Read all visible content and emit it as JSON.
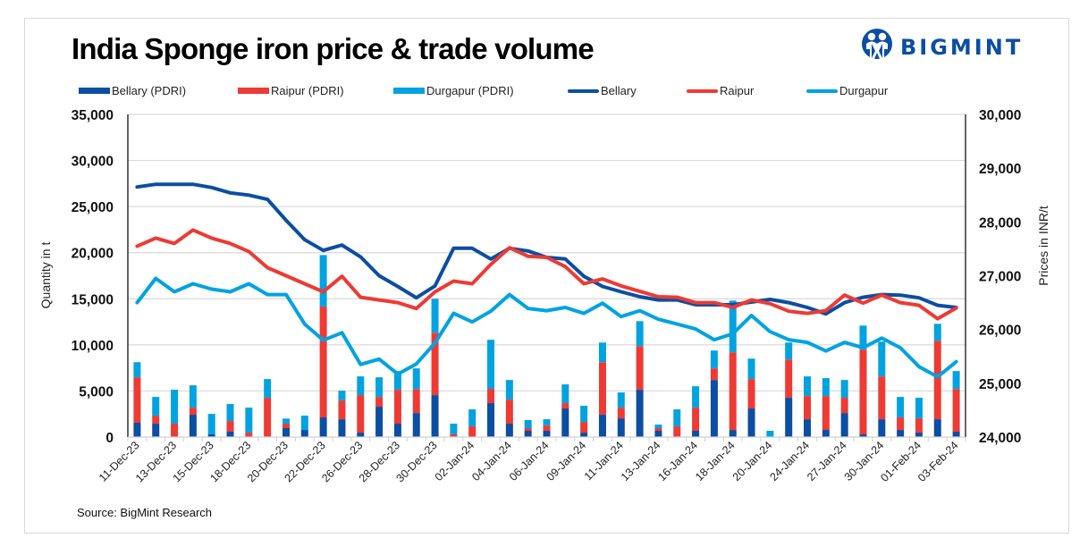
{
  "title": "India Sponge iron price & trade volume",
  "logo": {
    "text": "BIGMINT",
    "icon": "bigmint-people-icon"
  },
  "source": "Source: BigMint Research",
  "colors": {
    "bellary": "#0b4ea2",
    "raipur": "#ee3a35",
    "durgapur": "#00a3e0",
    "grid": "#d9d9d9"
  },
  "legend": [
    {
      "label": "Bellary (PDRI)",
      "kind": "bar",
      "series": "bellary"
    },
    {
      "label": "Raipur (PDRI)",
      "kind": "bar",
      "series": "raipur"
    },
    {
      "label": "Durgapur (PDRI)",
      "kind": "bar",
      "series": "durgapur"
    },
    {
      "label": "Bellary",
      "kind": "line",
      "series": "bellary"
    },
    {
      "label": "Raipur",
      "kind": "line",
      "series": "raipur"
    },
    {
      "label": "Durgapur",
      "kind": "line",
      "series": "durgapur"
    }
  ],
  "chart_data": {
    "type": "bar+line",
    "title": "India Sponge iron price & trade volume",
    "ylabel": "Quantity in t",
    "y2label": "Prices in INR/t",
    "ylim": [
      0,
      35000
    ],
    "y2lim": [
      24000,
      30000
    ],
    "yticks": [
      "0",
      "5,000",
      "10,000",
      "15,000",
      "20,000",
      "25,000",
      "30,000",
      "35,000"
    ],
    "y2ticks": [
      "24,000",
      "25,000",
      "26,000",
      "27,000",
      "28,000",
      "29,000",
      "30,000"
    ],
    "grid": true,
    "legend_position": "top",
    "categories": [
      "11-Dec-23",
      "",
      "13-Dec-23",
      "",
      "15-Dec-23",
      "",
      "18-Dec-23",
      "",
      "20-Dec-23",
      "",
      "22-Dec-23",
      "",
      "26-Dec-23",
      "",
      "28-Dec-23",
      "",
      "30-Dec-23",
      "",
      "02-Jan-24",
      "",
      "04-Jan-24",
      "",
      "06-Jan-24",
      "",
      "09-Jan-24",
      "",
      "11-Jan-24",
      "",
      "13-Jan-24",
      "",
      "16-Jan-24",
      "",
      "18-Jan-24",
      "",
      "20-Jan-24",
      "",
      "24-Jan-24",
      "",
      "27-Jan-24",
      "",
      "30-Jan-24",
      "",
      "01-Feb-24",
      "",
      "03-Feb-24"
    ],
    "bar_series": [
      {
        "name": "Bellary (PDRI)",
        "key": "bellary",
        "stacked": true,
        "values": [
          1550,
          1450,
          0,
          2420,
          290,
          580,
          0,
          0,
          970,
          770,
          2130,
          1930,
          480,
          3290,
          1450,
          2610,
          4550,
          0,
          0,
          3680,
          1450,
          680,
          680,
          3100,
          480,
          2420,
          2030,
          5130,
          680,
          0,
          680,
          6190,
          770,
          3100,
          0,
          4260,
          1930,
          770,
          2610,
          290,
          1930,
          770,
          480,
          1930,
          580
        ]
      },
      {
        "name": "Raipur (PDRI)",
        "key": "raipur",
        "stacked": true,
        "values": [
          4930,
          870,
          1450,
          770,
          0,
          1160,
          480,
          4260,
          480,
          0,
          12020,
          2040,
          4070,
          1060,
          3680,
          2610,
          6770,
          290,
          1160,
          1550,
          2610,
          290,
          570,
          580,
          1160,
          5700,
          1160,
          4730,
          290,
          1160,
          2510,
          1260,
          8420,
          3190,
          0,
          4150,
          2520,
          3680,
          1650,
          9190,
          4650,
          1360,
          1550,
          8520,
          4640
        ]
      },
      {
        "name": "Durgapur (PDRI)",
        "key": "durgapur",
        "stacked": true,
        "values": [
          1640,
          2030,
          3680,
          2420,
          2220,
          1840,
          2710,
          2030,
          550,
          1550,
          5590,
          1060,
          2030,
          2130,
          2030,
          2230,
          3680,
          1160,
          1840,
          5320,
          2130,
          870,
          680,
          2030,
          1750,
          2130,
          1650,
          2710,
          380,
          1840,
          2320,
          1930,
          5610,
          2220,
          680,
          1840,
          2130,
          1940,
          1930,
          2610,
          3770,
          2220,
          2230,
          1830,
          1940
        ]
      }
    ],
    "line_series": [
      {
        "name": "Bellary",
        "key": "bellary",
        "axis": "right",
        "values": [
          28650,
          28700,
          28700,
          28700,
          28640,
          28540,
          28500,
          28420,
          28030,
          27670,
          27470,
          27570,
          27350,
          27000,
          26800,
          26590,
          26810,
          27510,
          27510,
          27310,
          27510,
          27460,
          27340,
          27310,
          26990,
          26800,
          26700,
          26610,
          26550,
          26550,
          26460,
          26460,
          26460,
          26510,
          26560,
          26500,
          26410,
          26290,
          26500,
          26600,
          26650,
          26640,
          26590,
          26450,
          26410
        ]
      },
      {
        "name": "Raipur",
        "key": "raipur",
        "axis": "right",
        "values": [
          27550,
          27700,
          27600,
          27850,
          27700,
          27600,
          27450,
          27150,
          27000,
          26850,
          26700,
          26990,
          26600,
          26550,
          26500,
          26390,
          26700,
          26900,
          26850,
          27210,
          27520,
          27360,
          27340,
          27170,
          26850,
          26940,
          26810,
          26710,
          26610,
          26600,
          26500,
          26500,
          26410,
          26550,
          26480,
          26340,
          26300,
          26350,
          26640,
          26490,
          26640,
          26500,
          26450,
          26200,
          26400
        ]
      },
      {
        "name": "Durgapur",
        "key": "durgapur",
        "axis": "right",
        "values": [
          26500,
          26950,
          26700,
          26850,
          26750,
          26700,
          26850,
          26650,
          26650,
          26100,
          25800,
          25940,
          25350,
          25450,
          25170,
          25360,
          25750,
          26300,
          26140,
          26340,
          26650,
          26390,
          26350,
          26410,
          26300,
          26490,
          26240,
          26350,
          26190,
          26100,
          26010,
          25810,
          25920,
          26260,
          25960,
          25810,
          25760,
          25600,
          25760,
          25660,
          25840,
          25660,
          25310,
          25120,
          25400
        ]
      }
    ]
  }
}
